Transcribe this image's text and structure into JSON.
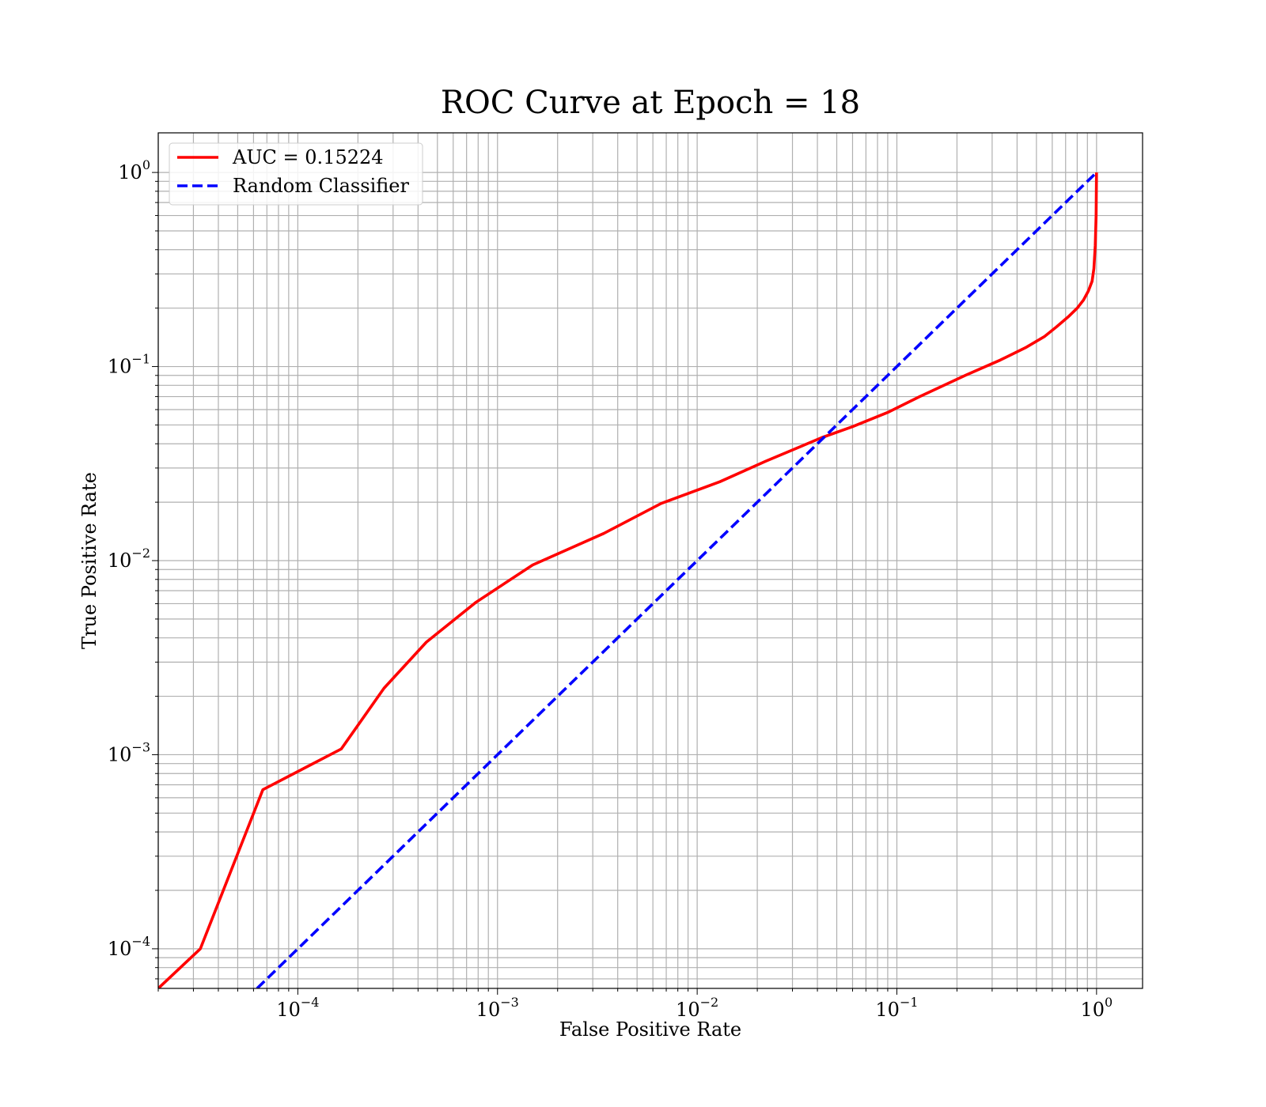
{
  "chart_data": {
    "type": "line",
    "title": "ROC Curve at Epoch = 18",
    "xlabel": "False Positive Rate",
    "ylabel": "True Positive Rate",
    "xscale": "log",
    "yscale": "log",
    "xlim": [
      2e-05,
      1.7
    ],
    "ylim": [
      6.25e-05,
      1.6
    ],
    "grid": true,
    "legend_position": "top-left",
    "x_ticks": [
      {
        "base": "10",
        "exp": "−4",
        "value": 0.0001
      },
      {
        "base": "10",
        "exp": "−3",
        "value": 0.001
      },
      {
        "base": "10",
        "exp": "−2",
        "value": 0.01
      },
      {
        "base": "10",
        "exp": "−1",
        "value": 0.1
      },
      {
        "base": "10",
        "exp": "0",
        "value": 1
      }
    ],
    "y_ticks": [
      {
        "base": "10",
        "exp": "−4",
        "value": 0.0001
      },
      {
        "base": "10",
        "exp": "−3",
        "value": 0.001
      },
      {
        "base": "10",
        "exp": "−2",
        "value": 0.01
      },
      {
        "base": "10",
        "exp": "−1",
        "value": 0.1
      },
      {
        "base": "10",
        "exp": "0",
        "value": 1
      }
    ],
    "series": [
      {
        "name": "AUC = 0.15224",
        "color": "#ff0000",
        "style": "solid",
        "x": [
          2e-05,
          3.25e-05,
          6.68e-05,
          0.000165,
          0.00027,
          0.00044,
          0.00078,
          0.0015,
          0.0034,
          0.0066,
          0.013,
          0.022,
          0.042,
          0.06,
          0.09,
          0.13,
          0.22,
          0.33,
          0.44,
          0.55,
          0.63,
          0.72,
          0.8,
          0.86,
          0.91,
          0.95,
          0.97,
          0.985,
          0.995,
          1.0
        ],
        "y": [
          6.25e-05,
          0.0001,
          0.00066,
          0.00107,
          0.0022,
          0.0038,
          0.0061,
          0.0095,
          0.0138,
          0.0197,
          0.0255,
          0.0325,
          0.043,
          0.049,
          0.058,
          0.07,
          0.09,
          0.108,
          0.125,
          0.143,
          0.16,
          0.18,
          0.2,
          0.22,
          0.245,
          0.275,
          0.32,
          0.42,
          0.6,
          1.0
        ]
      },
      {
        "name": "Random Classifier",
        "color": "#0000ff",
        "style": "dashed",
        "x": [
          6.25e-05,
          1.0
        ],
        "y": [
          6.25e-05,
          1.0
        ]
      }
    ]
  }
}
